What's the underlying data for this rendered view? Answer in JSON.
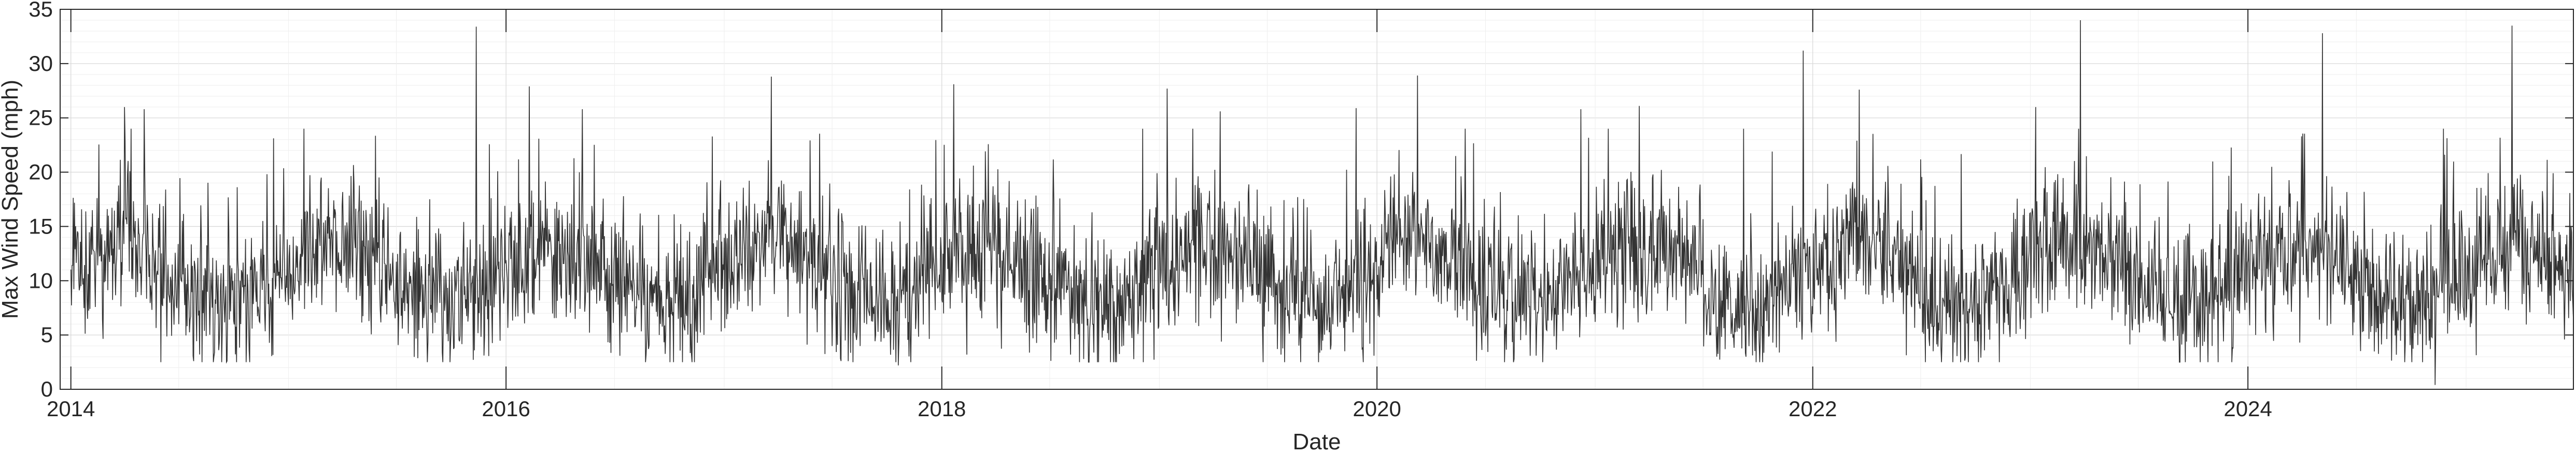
{
  "chart_data": {
    "type": "line",
    "title": "",
    "xlabel": "Date",
    "ylabel": "Max Wind Speed (mph)",
    "xlim": [
      "2013-12-14",
      "2025-06-30"
    ],
    "ylim": [
      0,
      35
    ],
    "x_ticks": [
      "2014",
      "2016",
      "2018",
      "2020",
      "2022",
      "2024"
    ],
    "y_ticks": [
      "0",
      "5",
      "10",
      "15",
      "20",
      "25",
      "30",
      "35"
    ],
    "grid": true,
    "minor_grid": true,
    "legend": "none",
    "series": [
      {
        "color": "#333333",
        "x_start": "2014-01-01",
        "x_step": "1 day",
        "baseline_mph": 10.5,
        "typical_range_mph": [
          3,
          22
        ],
        "notable_peaks": [
          {
            "date": "2014-04-01",
            "value": 26.0
          },
          {
            "date": "2014-05-04",
            "value": 25.8
          },
          {
            "date": "2015-11-12",
            "value": 33.4
          },
          {
            "date": "2016-02-09",
            "value": 27.9
          },
          {
            "date": "2016-05-08",
            "value": 25.8
          },
          {
            "date": "2017-03-21",
            "value": 28.8
          },
          {
            "date": "2018-01-21",
            "value": 28.1
          },
          {
            "date": "2019-01-14",
            "value": 27.7
          },
          {
            "date": "2019-04-13",
            "value": 25.6
          },
          {
            "date": "2019-11-27",
            "value": 25.9
          },
          {
            "date": "2020-03-09",
            "value": 28.9
          },
          {
            "date": "2020-12-08",
            "value": 25.8
          },
          {
            "date": "2021-03-16",
            "value": 26.1
          },
          {
            "date": "2021-12-16",
            "value": 31.2
          },
          {
            "date": "2022-03-20",
            "value": 27.6
          },
          {
            "date": "2023-01-10",
            "value": 26.0
          },
          {
            "date": "2023-03-26",
            "value": 34.0
          },
          {
            "date": "2024-05-05",
            "value": 32.8
          },
          {
            "date": "2025-03-19",
            "value": 33.5
          }
        ],
        "notable_lows": [
          {
            "date": "2017-10-20",
            "value": 2.2
          },
          {
            "date": "2018-12-05",
            "value": 2.5
          },
          {
            "date": "2024-11-10",
            "value": 0.4
          }
        ]
      }
    ]
  }
}
